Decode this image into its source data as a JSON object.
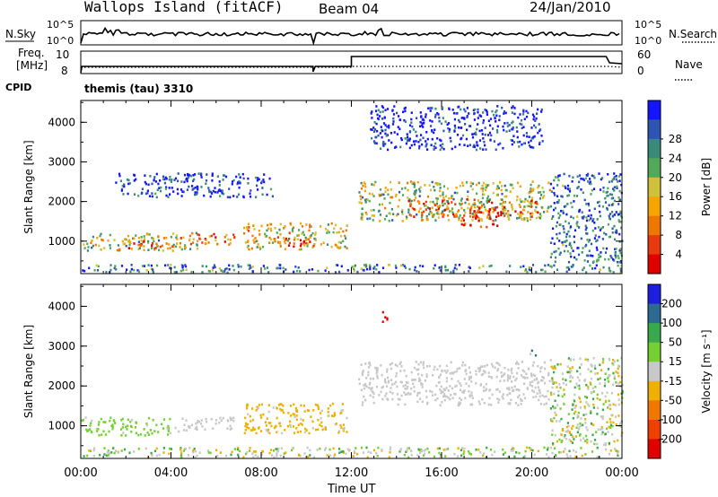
{
  "header": {
    "site": "Wallops Island (fitACF)",
    "beam": "Beam 04",
    "date": "24/Jan/2010"
  },
  "status_panels": {
    "nsky_label": "N.Sky",
    "nsearch_label": "N.Search",
    "noise_ticks": [
      "10^5",
      "10^0"
    ],
    "freq_label_1": "Freq.",
    "freq_label_2": "[MHz]",
    "freq_ticks": [
      "10",
      "8"
    ],
    "nave_ticks": [
      "60",
      "0"
    ],
    "nave_label": "Nave",
    "cpid_label": "CPID",
    "cpid_value": "themis (tau) 3310"
  },
  "chart_data": [
    {
      "type": "heatmap",
      "name": "power",
      "ylabel": "Slant Range [km]",
      "xlabel": "Time UT",
      "x_unit": "hours UT",
      "xlim": [
        0,
        24
      ],
      "ylim": [
        180,
        4550
      ],
      "yticks": [
        "1000",
        "2000",
        "3000",
        "4000"
      ],
      "colorbar": {
        "label": "Power [dB]",
        "ticks": [
          "4",
          "8",
          "12",
          "16",
          "20",
          "24",
          "28"
        ],
        "colors": [
          "#1414ff",
          "#2e55b4",
          "#3b8a78",
          "#54a85a",
          "#cfc23a",
          "#f5a400",
          "#ee7700",
          "#e83a10",
          "#e00000"
        ]
      },
      "regions": [
        {
          "t": [
            0.0,
            5.3
          ],
          "r": [
            750,
            1200
          ],
          "level": 0.45
        },
        {
          "t": [
            2.0,
            4.2
          ],
          "r": [
            800,
            1000
          ],
          "level": 0.8
        },
        {
          "t": [
            4.2,
            6.8
          ],
          "r": [
            900,
            1180
          ],
          "level": 0.7
        },
        {
          "t": [
            7.2,
            11.8
          ],
          "r": [
            780,
            1450
          ],
          "level": 0.55
        },
        {
          "t": [
            8.3,
            10.2
          ],
          "r": [
            850,
            1100
          ],
          "level": 0.85
        },
        {
          "t": [
            12.3,
            20.8
          ],
          "r": [
            1500,
            2500
          ],
          "level": 0.45
        },
        {
          "t": [
            14.5,
            20.3
          ],
          "r": [
            1600,
            2050
          ],
          "level": 0.75
        },
        {
          "t": [
            16.8,
            18.5
          ],
          "r": [
            1350,
            1800
          ],
          "level": 0.9
        },
        {
          "t": [
            20.8,
            24.0
          ],
          "r": [
            450,
            2700
          ],
          "level": 0.2
        },
        {
          "t": [
            0.0,
            24.0
          ],
          "r": [
            200,
            400
          ],
          "level": 0.25
        },
        {
          "t": [
            12.8,
            20.5
          ],
          "r": [
            3300,
            4400
          ],
          "level": 0.05
        },
        {
          "t": [
            1.5,
            8.5
          ],
          "r": [
            2100,
            2700
          ],
          "level": 0.1
        }
      ]
    },
    {
      "type": "heatmap",
      "name": "velocity",
      "ylabel": "Slant Range [km]",
      "xlabel": "Time UT",
      "x_unit": "hours UT",
      "xlim": [
        0,
        24
      ],
      "ylim": [
        180,
        4550
      ],
      "yticks": [
        "1000",
        "2000",
        "3000",
        "4000"
      ],
      "xticks": [
        "00:00",
        "04:00",
        "08:00",
        "12:00",
        "16:00",
        "20:00",
        "00:00"
      ],
      "colorbar": {
        "label": "Velocity [m s⁻¹]",
        "ticks": [
          "200",
          "100",
          "50",
          "15",
          "-15",
          "-50",
          "-100",
          "-200"
        ],
        "colors": [
          "#1e1ee0",
          "#2c6a92",
          "#3aa84c",
          "#74d030",
          "#c8c8c8",
          "#f0b000",
          "#f07800",
          "#f04000",
          "#e00000"
        ]
      },
      "regions": [
        {
          "t": [
            0.0,
            4.0
          ],
          "r": [
            750,
            1200
          ],
          "class": "+15..+50"
        },
        {
          "t": [
            4.0,
            6.8
          ],
          "r": [
            850,
            1200
          ],
          "class": "ground"
        },
        {
          "t": [
            7.2,
            11.8
          ],
          "r": [
            800,
            1550
          ],
          "class": "-15..-50"
        },
        {
          "t": [
            12.3,
            20.8
          ],
          "r": [
            1500,
            2600
          ],
          "class": "ground"
        },
        {
          "t": [
            20.8,
            24.0
          ],
          "r": [
            500,
            2700
          ],
          "class": "mixed"
        },
        {
          "t": [
            0.0,
            24.0
          ],
          "r": [
            200,
            450
          ],
          "class": "mixed"
        },
        {
          "t": [
            19.8,
            20.2
          ],
          "r": [
            2750,
            2900
          ],
          "class": "+50..+100"
        },
        {
          "t": [
            13.2,
            13.6
          ],
          "r": [
            3550,
            3850
          ],
          "class": "-100..-200"
        }
      ]
    }
  ]
}
